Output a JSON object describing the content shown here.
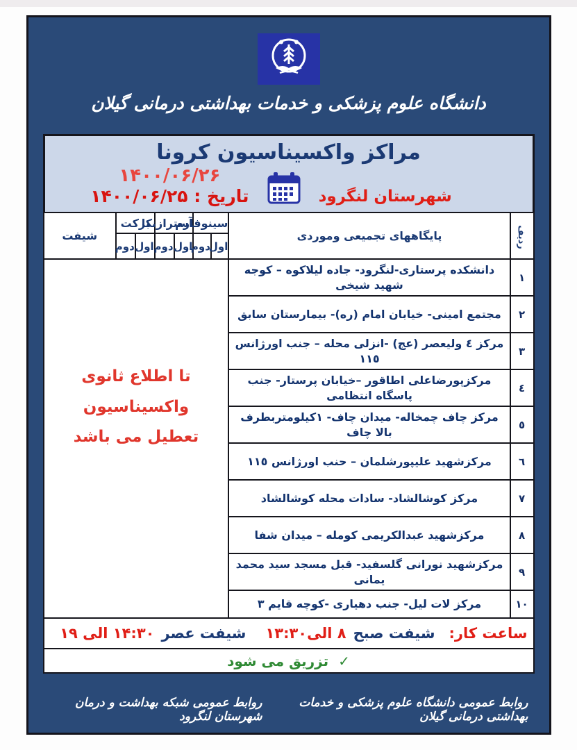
{
  "header": {
    "university_name": "دانشگاه علوم پزشکی و خدمات بهداشتی درمانی گیلان",
    "emblem": "university-emblem"
  },
  "panel": {
    "title": "مراکز واکسیناسیون کرونا",
    "county": "شهرستان لنگرود",
    "date_top": "۱۴۰۰/۰۶/۲۶",
    "date_label": "تاریخ :",
    "date_value": "۱۴۰۰/۰۶/۲۵",
    "calendar_icon": "calendar-icon"
  },
  "table": {
    "headers": {
      "row_number": "ردیف",
      "sites": "پایگاههای تجمیعی وموردی",
      "vaccines": [
        "سینوفارم",
        "آسترازنکا",
        "برکت"
      ],
      "dose_first": "اول",
      "dose_second": "دوم",
      "shift": "شیفت"
    },
    "rows": [
      {
        "num": "١",
        "site": "دانشکده پرستاری-لنگرود- جاده لیلاکوه – کوجه شهید شیخی"
      },
      {
        "num": "٢",
        "site": "مجتمع امینی- خیابان امام (ره)- بیمارستان سابق"
      },
      {
        "num": "٣",
        "site": "مرکز ٤ ولیعصر (عج) -انزلی محله – جنب اورژانس ١١٥"
      },
      {
        "num": "٤",
        "site": "مرکزپورضاعلی اطاقور –خیابان  پرستار- جنب پاسگاه انتظامی"
      },
      {
        "num": "٥",
        "site": "مرکز چاف چمخاله- میدان چاف- ١کیلومتربطرف بالا چاف"
      },
      {
        "num": "٦",
        "site": "مرکزشهید علیپورشلمان – حنب اورژانس ١١٥"
      },
      {
        "num": "٧",
        "site": "مرکز کوشالشاد- سادات محله کوشالشاد"
      },
      {
        "num": "٨",
        "site": "مرکزشهید عبدالکریمی کومله – میدان شفا"
      },
      {
        "num": "٩",
        "site": "مرکزشهید نورانی گلسفید- قبل مسجد سید محمد یمانی"
      },
      {
        "num": "١٠",
        "site": "مرکز لات لیل- جنب دهیاری -کوچه قایم ٣"
      }
    ],
    "closure_notice": "تا اطلاع ثانوی واکسیناسیون تعطیل می باشد"
  },
  "work_hours": {
    "label": "ساعت کار:",
    "morning_label": "شیفت صبح",
    "morning_time": "۸ الی۱۳:۳۰",
    "evening_label": "شیفت عصر",
    "evening_time": "۱۴:۳۰ الی ۱۹"
  },
  "injection_note": {
    "check": "✓",
    "text": "تزریق می شود"
  },
  "footer": {
    "right_text": "روابط عمومی دانشگاه علوم پزشکی و خدمات بهداشتی درمانی گیلان",
    "left_text": "روابط عمومی شبکه بهداشت و درمان شهرستان لنگرود"
  },
  "colors": {
    "poster_blue": "#2a4a78",
    "panel_blue": "#ccd7e9",
    "logo_blue": "#2733a6",
    "navy": "#1b3a74",
    "red": "#e01e16",
    "light_red": "#e8463e",
    "green": "#2f8a34"
  }
}
